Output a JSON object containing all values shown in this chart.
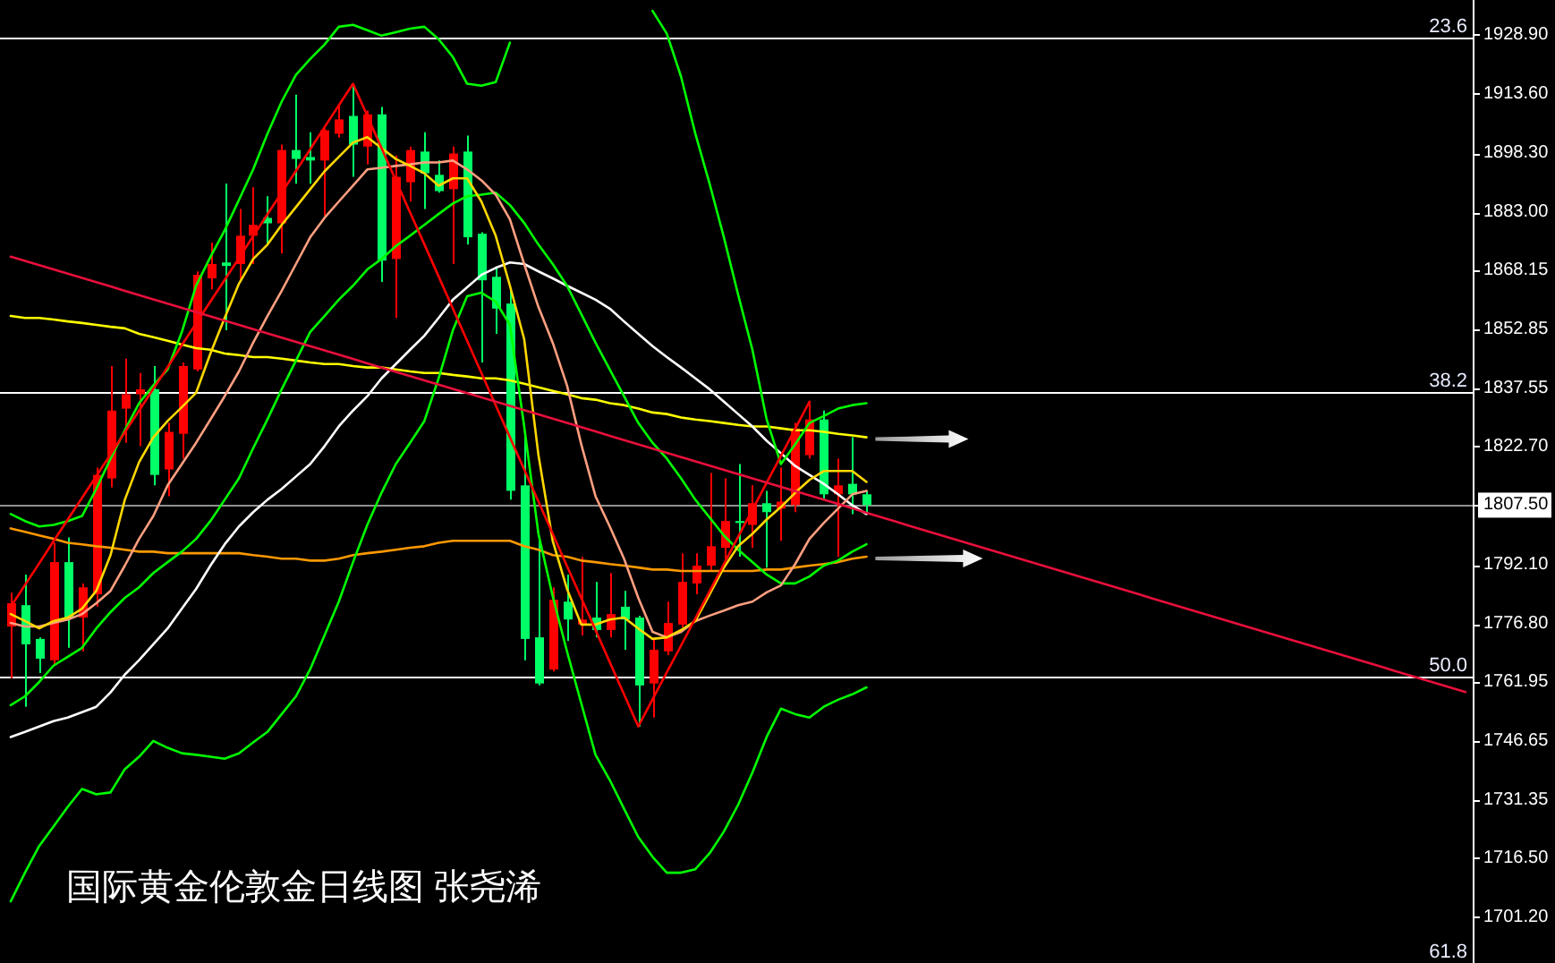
{
  "chart_data": {
    "type": "candlestick",
    "title": "国际黄金伦敦金日线图 张尧浠",
    "categories": [
      null,
      null,
      null,
      null,
      null,
      null,
      null,
      null,
      null,
      null,
      null,
      null,
      null,
      null,
      null,
      null,
      null,
      null,
      null,
      null,
      null,
      null,
      null,
      null,
      null,
      null,
      null,
      null,
      null,
      null,
      null,
      null,
      null,
      null,
      null,
      null,
      null,
      null,
      null,
      null,
      null,
      null,
      null,
      null,
      null,
      null,
      null,
      null,
      null,
      null,
      null,
      null,
      null,
      null,
      null,
      null,
      null,
      null,
      null,
      null,
      null,
      null,
      null,
      null,
      null,
      null,
      null,
      null,
      null,
      null,
      null,
      null,
      null,
      null,
      null,
      null,
      null,
      null,
      null,
      null,
      null,
      null,
      null,
      null,
      null,
      null,
      null,
      null,
      null,
      null,
      null,
      null,
      null,
      null,
      null,
      null,
      null,
      null,
      null,
      null,
      null,
      null,
      null
    ],
    "ohlc": [
      [
        1776.2,
        1784.9,
        1762.8,
        1782.2
      ],
      [
        1781.7,
        1789.6,
        1755.5,
        1771.6
      ],
      [
        1773.0,
        1773.4,
        1764.2,
        1767.9
      ],
      [
        1767.5,
        1797.8,
        1766.1,
        1792.8
      ],
      [
        1792.8,
        1799.2,
        1770.7,
        1778.5
      ],
      [
        1778.5,
        1787.3,
        1769.8,
        1786.3
      ],
      [
        1784.5,
        1817.2,
        1781.3,
        1815.3
      ],
      [
        1814.4,
        1843.4,
        1812.1,
        1831.9
      ],
      [
        1832.4,
        1845.3,
        1823.6,
        1836.1
      ],
      [
        1836.1,
        1841.6,
        1822.7,
        1837.4
      ],
      [
        1837.4,
        1843.4,
        1812.6,
        1815.3
      ],
      [
        1816.7,
        1828.7,
        1809.8,
        1826.4
      ],
      [
        1825.9,
        1844.3,
        1819.5,
        1843.4
      ],
      [
        1842.5,
        1867.8,
        1842.0,
        1866.9
      ],
      [
        1866.0,
        1875.2,
        1863.2,
        1869.7
      ],
      [
        1870.1,
        1890.4,
        1852.6,
        1869.2
      ],
      [
        1869.7,
        1883.9,
        1865.5,
        1877.0
      ],
      [
        1877.0,
        1889.5,
        1869.7,
        1879.8
      ],
      [
        1881.6,
        1887.2,
        1874.7,
        1880.2
      ],
      [
        1880.2,
        1900.5,
        1872.4,
        1899.1
      ],
      [
        1899.1,
        1913.4,
        1890.4,
        1896.8
      ],
      [
        1897.3,
        1903.7,
        1890.4,
        1896.4
      ],
      [
        1896.4,
        1904.7,
        1882.1,
        1904.2
      ],
      [
        1903.3,
        1910.6,
        1902.3,
        1907.0
      ],
      [
        1907.9,
        1916.2,
        1892.2,
        1900.5
      ],
      [
        1900.0,
        1909.3,
        1895.4,
        1908.3
      ],
      [
        1908.3,
        1910.2,
        1865.1,
        1870.6
      ],
      [
        1871.0,
        1897.7,
        1855.8,
        1892.2
      ],
      [
        1890.8,
        1900.0,
        1885.8,
        1899.1
      ],
      [
        1898.7,
        1903.7,
        1883.9,
        1893.1
      ],
      [
        1892.7,
        1896.4,
        1888.1,
        1888.5
      ],
      [
        1889.0,
        1900.0,
        1869.7,
        1898.2
      ],
      [
        1898.7,
        1902.8,
        1874.7,
        1876.6
      ],
      [
        1877.5,
        1877.9,
        1844.3,
        1865.5
      ],
      [
        1866.4,
        1868.7,
        1851.7,
        1858.2
      ],
      [
        1859.5,
        1862.8,
        1808.9,
        1811.2
      ],
      [
        1812.6,
        1825.9,
        1767.5,
        1773.0
      ],
      [
        1773.4,
        1798.3,
        1761.0,
        1761.5
      ],
      [
        1765.1,
        1786.3,
        1764.6,
        1783.1
      ],
      [
        1782.6,
        1789.6,
        1772.5,
        1778.0
      ],
      [
        1776.7,
        1794.2,
        1773.9,
        1778.0
      ],
      [
        1778.5,
        1787.7,
        1773.4,
        1775.3
      ],
      [
        1775.3,
        1790.0,
        1773.4,
        1779.4
      ],
      [
        1781.3,
        1785.4,
        1770.2,
        1778.0
      ],
      [
        1778.5,
        1779.0,
        1750.4,
        1761.0
      ],
      [
        1761.5,
        1773.4,
        1752.7,
        1770.2
      ],
      [
        1769.8,
        1782.6,
        1768.8,
        1777.1
      ],
      [
        1776.7,
        1795.1,
        1776.0,
        1787.7
      ],
      [
        1787.3,
        1795.1,
        1784.5,
        1791.9
      ],
      [
        1791.9,
        1815.8,
        1790.5,
        1796.9
      ],
      [
        1796.5,
        1814.4,
        1793.7,
        1803.4
      ],
      [
        1803.4,
        1818.1,
        1794.2,
        1802.9
      ],
      [
        1802.4,
        1812.6,
        1796.5,
        1808.0
      ],
      [
        1808.0,
        1811.2,
        1791.4,
        1805.7
      ],
      [
        1806.6,
        1817.2,
        1798.3,
        1808.4
      ],
      [
        1807.5,
        1828.7,
        1805.7,
        1827.3
      ],
      [
        1820.4,
        1834.2,
        1819.5,
        1829.6
      ],
      [
        1829.6,
        1831.9,
        1808.9,
        1810.3
      ],
      [
        1810.3,
        1819.5,
        1794.2,
        1812.6
      ],
      [
        1813.0,
        1825.0,
        1805.2,
        1810.3
      ],
      [
        1810.3,
        1811.2,
        1805.2,
        1807.5
      ],
      null,
      null,
      null,
      null,
      null,
      null,
      null,
      null,
      null,
      null,
      null,
      null,
      null,
      null,
      null,
      null,
      null,
      null,
      null,
      null,
      null,
      null,
      null,
      null,
      null,
      null,
      null,
      null,
      null,
      null,
      null,
      null,
      null,
      null,
      null,
      null,
      null,
      null,
      null,
      null,
      null,
      null
    ],
    "colors": [
      "#ff0000",
      "#00ff66",
      "#00ff66",
      "#ff0000",
      "#00ff66",
      "#ff0000",
      "#ff0000",
      "#ff0000",
      "#ff0000",
      "#ff0000",
      "#00ff66",
      "#ff0000",
      "#ff0000",
      "#ff0000",
      "#ff0000",
      "#00ff66",
      "#ff0000",
      "#ff0000",
      "#00ff66",
      "#ff0000",
      "#00ff66",
      "#00ff66",
      "#ff0000",
      "#ff0000",
      "#00ff66",
      "#ff0000",
      "#00ff66",
      "#ff0000",
      "#ff0000",
      "#00ff66",
      "#00ff66",
      "#ff0000",
      "#00ff66",
      "#00ff66",
      "#00ff66",
      "#00ff66",
      "#00ff66",
      "#00ff66",
      "#ff0000",
      "#00ff66",
      "#ff0000",
      "#00ff66",
      "#ff0000",
      "#00ff66",
      "#00ff66",
      "#ff0000",
      "#ff0000",
      "#ff0000",
      "#ff0000",
      "#ff0000",
      "#ff0000",
      "#00ff66",
      "#ff0000",
      "#00ff66",
      "#ff0000",
      "#ff0000",
      "#ff0000",
      "#00ff66",
      "#ff0000",
      "#00ff66",
      "#00ff66",
      null,
      null,
      null,
      null,
      null,
      null,
      null,
      null,
      null,
      null,
      null,
      null,
      null,
      null,
      null,
      null,
      null,
      null,
      null,
      null,
      null,
      null,
      null,
      null,
      null,
      null,
      null,
      null,
      null,
      null,
      null,
      null,
      null,
      null,
      null,
      null,
      null,
      null,
      null,
      null,
      null,
      null
    ],
    "series": [
      {
        "type": "line",
        "color": "#ffff00",
        "values": [
          1856.3,
          1855.8,
          1855.8,
          1855.4,
          1854.9,
          1854.5,
          1854.0,
          1853.5,
          1853.1,
          1851.7,
          1850.8,
          1849.9,
          1848.9,
          1848.0,
          1847.6,
          1846.6,
          1846.2,
          1845.7,
          1845.7,
          1845.3,
          1844.8,
          1844.3,
          1843.9,
          1843.9,
          1843.4,
          1843.0,
          1843.0,
          1842.5,
          1842.0,
          1841.6,
          1841.6,
          1841.1,
          1840.7,
          1840.2,
          1840.2,
          1839.7,
          1838.8,
          1837.9,
          1837.0,
          1836.1,
          1835.1,
          1834.7,
          1833.8,
          1833.3,
          1832.4,
          1831.4,
          1831.0,
          1830.1,
          1829.6,
          1829.2,
          1828.7,
          1828.2,
          1827.8,
          1827.8,
          1827.3,
          1826.8,
          1826.8,
          1826.4,
          1825.9,
          1825.5,
          1825.0,
          null,
          null,
          null,
          null,
          null,
          null,
          null,
          null,
          null,
          null,
          null,
          null,
          null,
          null,
          null,
          null,
          null,
          null,
          null,
          null,
          null,
          null,
          null,
          null,
          null,
          null,
          null,
          null,
          null,
          null,
          null,
          null,
          null,
          null,
          null,
          null,
          null,
          null,
          null,
          null,
          null,
          null
        ]
      },
      {
        "type": "line",
        "color": "#ff9900",
        "values": [
          1801.5,
          1800.6,
          1799.7,
          1798.8,
          1797.8,
          1797.4,
          1796.9,
          1796.5,
          1796.0,
          1795.5,
          1795.5,
          1795.1,
          1795.1,
          1795.1,
          1795.1,
          1795.1,
          1795.1,
          1794.6,
          1794.2,
          1793.7,
          1793.7,
          1793.2,
          1793.2,
          1793.7,
          1794.6,
          1795.1,
          1795.5,
          1796.0,
          1796.5,
          1796.9,
          1797.8,
          1798.3,
          1798.3,
          1798.3,
          1798.3,
          1798.3,
          1796.9,
          1796.0,
          1794.6,
          1794.2,
          1793.2,
          1792.8,
          1792.3,
          1791.9,
          1791.4,
          1790.9,
          1790.9,
          1790.5,
          1790.5,
          1790.5,
          1790.5,
          1790.5,
          1790.5,
          1790.9,
          1790.9,
          1791.4,
          1791.9,
          1792.3,
          1792.8,
          1793.7,
          1794.2,
          null,
          null,
          null,
          null,
          null,
          null,
          null,
          null,
          null,
          null,
          null,
          null,
          null,
          null,
          null,
          null,
          null,
          null,
          null,
          null,
          null,
          null,
          null,
          null,
          null,
          null,
          null,
          null,
          null,
          null,
          null,
          null,
          null,
          null,
          null,
          null,
          null,
          null,
          null,
          null,
          null,
          null
        ]
      },
      {
        "type": "line",
        "color": "#ffffff",
        "values": [
          1747.7,
          1749.0,
          1750.4,
          1751.8,
          1752.7,
          1754.1,
          1755.5,
          1759.2,
          1763.8,
          1767.5,
          1771.6,
          1775.7,
          1780.8,
          1785.9,
          1791.9,
          1797.4,
          1802.0,
          1805.7,
          1808.9,
          1811.7,
          1814.9,
          1818.1,
          1822.7,
          1827.8,
          1831.9,
          1835.6,
          1840.2,
          1843.9,
          1847.6,
          1851.2,
          1855.8,
          1860.5,
          1863.7,
          1866.9,
          1868.7,
          1870.1,
          1869.7,
          1867.8,
          1866.0,
          1864.1,
          1862.3,
          1860.5,
          1858.2,
          1854.9,
          1851.7,
          1848.5,
          1845.7,
          1843.0,
          1840.2,
          1837.4,
          1834.2,
          1831.0,
          1827.8,
          1824.1,
          1820.9,
          1817.6,
          1815.3,
          1813.0,
          1810.3,
          1807.5,
          1805.2,
          null,
          null,
          null,
          null,
          null,
          null,
          null,
          null,
          null,
          null,
          null,
          null,
          null,
          null,
          null,
          null,
          null,
          null,
          null,
          null,
          null,
          null,
          null,
          null,
          null,
          null,
          null,
          null,
          null,
          null,
          null,
          null,
          null,
          null,
          null,
          null,
          null,
          null,
          null,
          null,
          null,
          null
        ]
      },
      {
        "type": "line",
        "color": "#00ff00",
        "values": [
          1805.2,
          1803.4,
          1802.0,
          1802.4,
          1803.4,
          1804.7,
          1811.7,
          1819.5,
          1826.8,
          1833.8,
          1838.4,
          1842.5,
          1852.2,
          1864.1,
          1871.5,
          1878.4,
          1886.2,
          1894.1,
          1903.3,
          1911.6,
          1918.5,
          1922.6,
          1926.3,
          1930.9,
          1931.4,
          1930.0,
          1928.6,
          1929.5,
          1930.4,
          1930.9,
          1927.7,
          1923.1,
          1916.2,
          1915.7,
          1916.6,
          1926.8,
          null,
          null,
          null,
          null,
          null,
          null,
          null,
          null,
          null,
          1935.0,
          1929.1,
          1918.0,
          1903.3,
          1890.4,
          1876.6,
          1861.8,
          1847.6,
          1829.6,
          1818.1,
          1823.2,
          1828.7,
          1830.5,
          1832.4,
          1833.3,
          1833.8,
          null,
          null,
          null,
          null,
          null,
          null,
          null,
          null,
          null,
          null,
          null,
          null,
          null,
          null,
          null,
          null,
          null,
          null,
          null,
          null,
          null,
          null,
          null,
          null,
          null,
          null,
          null,
          null,
          null,
          null,
          null,
          null,
          null,
          null,
          null,
          null,
          null,
          null,
          null,
          null,
          null,
          null
        ]
      },
      {
        "type": "line",
        "color": "#00ff00",
        "values": [
          1755.9,
          1758.2,
          1761.9,
          1766.1,
          1768.4,
          1770.7,
          1775.7,
          1779.9,
          1783.6,
          1786.3,
          1790.0,
          1792.8,
          1795.5,
          1798.8,
          1803.4,
          1808.9,
          1814.4,
          1822.2,
          1829.6,
          1837.4,
          1844.8,
          1852.2,
          1856.3,
          1860.5,
          1864.1,
          1868.3,
          1871.0,
          1874.3,
          1877.0,
          1879.8,
          1882.6,
          1885.3,
          1887.2,
          1887.6,
          1888.1,
          1884.9,
          1880.3,
          1874.7,
          1869.7,
          1864.1,
          1856.8,
          1849.4,
          1842.5,
          1835.6,
          1828.7,
          1823.6,
          1819.5,
          1814.4,
          1808.9,
          1804.3,
          1799.7,
          1796.0,
          1792.8,
          1789.6,
          1787.3,
          1787.3,
          1789.1,
          1791.9,
          1793.2,
          1795.5,
          1797.4,
          null,
          null,
          null,
          null,
          null,
          null,
          null,
          null,
          null,
          null,
          null,
          null,
          null,
          null,
          null,
          null,
          null,
          null,
          null,
          null,
          null,
          null,
          null,
          null,
          null,
          null,
          null,
          null,
          null,
          null,
          null,
          null,
          null,
          null,
          null,
          null,
          null,
          null,
          null,
          null,
          null,
          null
        ]
      },
      {
        "type": "line",
        "color": "#00ff00",
        "values": [
          1705.3,
          1712.7,
          1719.6,
          1724.6,
          1729.7,
          1734.3,
          1732.9,
          1733.4,
          1739.4,
          1742.6,
          1746.7,
          1744.9,
          1743.5,
          1743.1,
          1742.6,
          1742.1,
          1743.5,
          1746.3,
          1749.0,
          1753.6,
          1758.2,
          1765.2,
          1773.9,
          1782.6,
          1792.8,
          1802.4,
          1810.7,
          1818.1,
          1823.6,
          1829.2,
          1840.2,
          1852.6,
          1861.4,
          1862.3,
          1860.0,
          1854.0,
          1827.8,
          1800.1,
          1784.0,
          1769.8,
          1756.4,
          1743.1,
          1736.6,
          1729.2,
          1721.9,
          1716.8,
          1712.7,
          1712.7,
          1713.6,
          1717.7,
          1723.3,
          1730.2,
          1738.5,
          1747.7,
          1755.0,
          1753.6,
          1752.7,
          1755.5,
          1757.3,
          1758.7,
          1760.5,
          null,
          null,
          null,
          null,
          null,
          null,
          null,
          null,
          null,
          null,
          null,
          null,
          null,
          null,
          null,
          null,
          null,
          null,
          null,
          null,
          null,
          null,
          null,
          null,
          null,
          null,
          null,
          null,
          null,
          null,
          null,
          null,
          null,
          null,
          null,
          null,
          null,
          null,
          null,
          null,
          null,
          null
        ]
      },
      {
        "type": "line",
        "color": "#ff9f80",
        "values": [
          1777.1,
          1776.2,
          1776.2,
          1777.1,
          1778.0,
          1779.4,
          1782.2,
          1785.4,
          1791.9,
          1798.8,
          1804.7,
          1812.6,
          1818.1,
          1823.6,
          1829.6,
          1835.6,
          1842.0,
          1849.4,
          1856.3,
          1862.8,
          1869.7,
          1876.6,
          1881.6,
          1885.8,
          1889.9,
          1894.1,
          1894.5,
          1895.0,
          1895.4,
          1895.9,
          1895.9,
          1896.4,
          1894.1,
          1891.3,
          1887.6,
          1881.2,
          1869.7,
          1858.6,
          1849.4,
          1838.4,
          1823.2,
          1809.8,
          1802.0,
          1793.7,
          1783.6,
          1774.8,
          1773.4,
          1774.8,
          1777.6,
          1779.0,
          1780.3,
          1781.7,
          1782.6,
          1785.0,
          1786.8,
          1792.3,
          1798.8,
          1802.9,
          1806.6,
          1810.3,
          1811.2,
          null,
          null,
          null,
          null,
          null,
          null,
          null,
          null,
          null,
          null,
          null,
          null,
          null,
          null,
          null,
          null,
          null,
          null,
          null,
          null,
          null,
          null,
          null,
          null,
          null,
          null,
          null,
          null,
          null,
          null,
          null,
          null,
          null,
          null,
          null,
          null,
          null,
          null,
          null,
          null,
          null,
          null
        ]
      },
      {
        "type": "line",
        "color": "#ffd700",
        "values": [
          1779.4,
          1777.6,
          1775.7,
          1777.6,
          1778.5,
          1780.8,
          1785.4,
          1794.6,
          1808.9,
          1818.6,
          1825.0,
          1829.2,
          1832.8,
          1836.5,
          1846.6,
          1855.8,
          1864.6,
          1871.0,
          1874.7,
          1879.8,
          1884.4,
          1889.0,
          1893.6,
          1897.3,
          1901.0,
          1902.4,
          1899.6,
          1896.8,
          1895.0,
          1893.1,
          1889.9,
          1891.8,
          1891.8,
          1885.8,
          1877.0,
          1864.1,
          1850.3,
          1820.4,
          1798.3,
          1785.9,
          1776.7,
          1776.7,
          1778.0,
          1778.5,
          1775.7,
          1773.0,
          1773.4,
          1775.3,
          1777.6,
          1784.5,
          1791.4,
          1796.9,
          1800.1,
          1803.8,
          1807.0,
          1810.7,
          1814.0,
          1816.3,
          1816.3,
          1816.3,
          1813.5,
          null,
          null,
          null,
          null,
          null,
          null,
          null,
          null,
          null,
          null,
          null,
          null,
          null,
          null,
          null,
          null,
          null,
          null,
          null,
          null,
          null,
          null,
          null,
          null,
          null,
          null,
          null,
          null,
          null,
          null,
          null,
          null,
          null,
          null,
          null,
          null,
          null,
          null,
          null,
          null,
          null,
          null
        ]
      },
      {
        "type": "line",
        "color": "#ff0000",
        "values": [
          1781.3,
          1786.9,
          1792.5,
          1798.2,
          1803.8,
          1809.4,
          1815.0,
          1820.6,
          1826.3,
          1831.9,
          1837.5,
          1843.1,
          1848.8,
          1854.4,
          1860.0,
          1865.6,
          1871.2,
          1876.9,
          1882.5,
          1888.1,
          1893.7,
          1899.3,
          1905.0,
          1910.6,
          1916.2,
          1907.9,
          1899.6,
          1891.3,
          1883.0,
          1874.8,
          1866.5,
          1858.2,
          1849.9,
          1841.6,
          1833.3,
          1825.0,
          1816.7,
          1808.4,
          1800.1,
          1791.8,
          1783.6,
          1775.3,
          1767.0,
          1758.7,
          1750.4,
          1757.4,
          1764.4,
          1771.3,
          1778.3,
          1785.3,
          1792.3,
          1799.3,
          1806.3,
          1813.3,
          1820.2,
          1827.2,
          1834.2,
          null,
          null,
          null,
          null,
          null,
          null,
          null,
          null,
          null,
          null,
          null,
          null,
          null,
          null,
          null,
          null,
          null,
          null,
          null,
          null,
          null,
          null,
          null,
          null,
          null,
          null,
          null,
          null,
          null,
          null,
          null,
          null,
          null,
          null,
          null,
          null,
          null,
          null,
          null,
          null,
          null,
          null,
          null,
          null,
          null,
          null
        ]
      },
      {
        "type": "line",
        "color": "#e8103c",
        "values": [
          1871.6,
          1870.5,
          1869.4,
          1868.3,
          1867.2,
          1866.1,
          1865.0,
          1863.9,
          1862.8,
          1861.7,
          1860.6,
          1859.5,
          1858.4,
          1857.3,
          1856.2,
          1855.1,
          1854.0,
          1852.9,
          1851.8,
          1850.7,
          1849.6,
          1848.5,
          1847.4,
          1846.3,
          1845.2,
          1844.1,
          1843.0,
          1841.9,
          1840.8,
          1839.7,
          1838.6,
          1837.5,
          1836.4,
          1835.3,
          1834.2,
          1833.1,
          1832.0,
          1830.9,
          1829.8,
          1828.7,
          1827.6,
          1826.5,
          1825.4,
          1824.3,
          1823.2,
          1822.1,
          1821.0,
          1819.9,
          1818.8,
          1817.7,
          1816.6,
          1815.5,
          1814.4,
          1813.3,
          1812.2,
          1811.1,
          1810.0,
          1808.9,
          1807.8,
          1806.7,
          1805.5,
          1804.4,
          1803.3,
          1802.2,
          1801.1,
          1800.0,
          1798.9,
          1797.8,
          1796.7,
          1795.6,
          1794.5,
          1793.4,
          1792.3,
          1791.2,
          1790.1,
          1789.0,
          1787.9,
          1786.8,
          1785.7,
          1784.6,
          1783.5,
          1782.4,
          1781.3,
          1780.2,
          1779.1,
          1778.0,
          1776.9,
          1775.8,
          1774.7,
          1773.6,
          1772.5,
          1771.4,
          1770.3,
          1769.2,
          1768.1,
          1767.0,
          1765.9,
          1764.8,
          1763.7,
          1762.6,
          1761.5,
          1760.4,
          1759.3
        ]
      }
    ],
    "ylim": [
      1689.4,
      1937.8
    ],
    "yticks": [
      {
        "value": 1928.9,
        "label": "1928.90"
      },
      {
        "value": 1913.6,
        "label": "1913.60"
      },
      {
        "value": 1898.3,
        "label": "1898.30"
      },
      {
        "value": 1883.0,
        "label": "1883.00"
      },
      {
        "value": 1868.15,
        "label": "1868.15"
      },
      {
        "value": 1852.85,
        "label": "1852.85"
      },
      {
        "value": 1837.55,
        "label": "1837.55"
      },
      {
        "value": 1822.7,
        "label": "1822.70"
      },
      {
        "value": 1807.5,
        "label": "1807.50"
      },
      {
        "value": 1792.1,
        "label": "1792.10"
      },
      {
        "value": 1776.8,
        "label": "1776.80"
      },
      {
        "value": 1761.95,
        "label": "1761.95"
      },
      {
        "value": 1746.65,
        "label": "1746.65"
      },
      {
        "value": 1731.35,
        "label": "1731.35"
      },
      {
        "value": 1716.5,
        "label": "1716.50"
      },
      {
        "value": 1701.2,
        "label": "1701.20"
      }
    ],
    "ref_lines": [
      {
        "axis": "y",
        "value": 1928.1,
        "color": "#ffffff"
      },
      {
        "axis": "y",
        "value": 1836.8,
        "color": "#ffffff"
      },
      {
        "axis": "y",
        "value": 1763.2,
        "color": "#ffffff"
      },
      {
        "axis": "y",
        "value": 1807.5,
        "color": "#909090"
      }
    ],
    "annotations": [
      {
        "text": "23.6",
        "y": 1928.1
      },
      {
        "text": "38.2",
        "y": 1836.8
      },
      {
        "text": "50.0",
        "y": 1763.2
      },
      "61.8"
    ],
    "tick_labels": "y"
  }
}
